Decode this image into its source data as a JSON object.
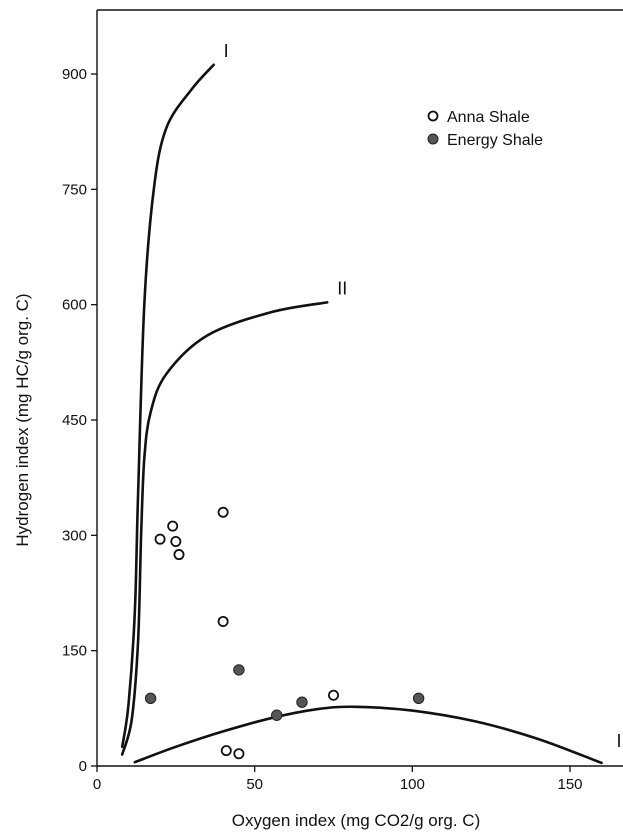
{
  "chart_data": {
    "type": "scatter",
    "xlabel": "Oxygen index (mg CO2/g org. C)",
    "ylabel": "Hydrogen index (mg HC/g org. C)",
    "xlim": [
      0,
      160
    ],
    "ylim": [
      0,
      980
    ],
    "xticks": [
      "0",
      "50",
      "100",
      "150"
    ],
    "yticks": [
      "0",
      "150",
      "300",
      "450",
      "600",
      "750",
      "900"
    ],
    "grid": false,
    "legend_position": "top-right",
    "series": [
      {
        "name": "Anna Shale",
        "marker": "open-circle",
        "color": "#111111",
        "points": [
          {
            "x": 20,
            "y": 295
          },
          {
            "x": 24,
            "y": 312
          },
          {
            "x": 25,
            "y": 292
          },
          {
            "x": 26,
            "y": 275
          },
          {
            "x": 40,
            "y": 330
          },
          {
            "x": 40,
            "y": 188
          },
          {
            "x": 41,
            "y": 20
          },
          {
            "x": 45,
            "y": 16
          },
          {
            "x": 75,
            "y": 92
          }
        ]
      },
      {
        "name": "Energy Shale",
        "marker": "filled-circle",
        "color": "#555555",
        "points": [
          {
            "x": 17,
            "y": 88
          },
          {
            "x": 45,
            "y": 125
          },
          {
            "x": 57,
            "y": 66
          },
          {
            "x": 65,
            "y": 83
          },
          {
            "x": 102,
            "y": 88
          }
        ]
      }
    ],
    "curves": [
      {
        "label": "I",
        "points": [
          [
            8,
            25
          ],
          [
            10,
            80
          ],
          [
            12,
            200
          ],
          [
            13,
            350
          ],
          [
            15,
            600
          ],
          [
            18,
            750
          ],
          [
            22,
            830
          ],
          [
            30,
            880
          ],
          [
            37,
            912
          ]
        ]
      },
      {
        "label": "II",
        "points": [
          [
            8,
            15
          ],
          [
            11,
            60
          ],
          [
            13,
            160
          ],
          [
            14,
            300
          ],
          [
            15,
            400
          ],
          [
            17,
            460
          ],
          [
            22,
            510
          ],
          [
            35,
            560
          ],
          [
            55,
            590
          ],
          [
            73,
            603
          ]
        ]
      },
      {
        "label": "III",
        "points": [
          [
            12,
            5
          ],
          [
            25,
            25
          ],
          [
            40,
            45
          ],
          [
            55,
            62
          ],
          [
            70,
            74
          ],
          [
            82,
            77
          ],
          [
            100,
            72
          ],
          [
            120,
            58
          ],
          [
            140,
            35
          ],
          [
            160,
            4
          ]
        ]
      }
    ]
  }
}
